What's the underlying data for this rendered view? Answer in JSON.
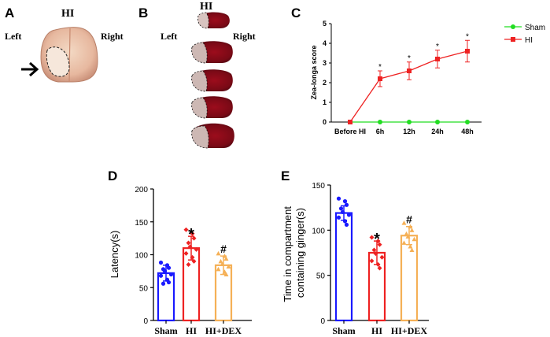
{
  "panels": {
    "a": {
      "label": "A",
      "title": "HI",
      "left_label": "Left",
      "right_label": "Right",
      "arrow_icon": "arrow-right-icon"
    },
    "b": {
      "label": "B",
      "title": "HI",
      "left_label": "Left",
      "right_label": "Right",
      "slice_count": 5
    },
    "c": {
      "label": "C"
    },
    "d": {
      "label": "D"
    },
    "e": {
      "label": "E"
    }
  },
  "colors": {
    "sham": "#1a1aff",
    "hi": "#ee2222",
    "hidex": "#f5b056",
    "line_sham": "#22dd22",
    "line_hi": "#ee2222"
  },
  "chart_data": [
    {
      "id": "C",
      "type": "line",
      "ylabel": "Zea-longa score",
      "categories": [
        "Before HI",
        "6h",
        "12h",
        "24h",
        "48h"
      ],
      "ylim": [
        0,
        5
      ],
      "yticks": [
        0,
        1,
        2,
        3,
        4,
        5
      ],
      "legend_position": "top-right",
      "series": [
        {
          "name": "Sham",
          "values": [
            0,
            0,
            0,
            0,
            0
          ],
          "errors": [
            0,
            0,
            0,
            0,
            0
          ],
          "annotations": [
            "",
            "",
            "",
            "",
            ""
          ]
        },
        {
          "name": "HI",
          "values": [
            0,
            2.2,
            2.6,
            3.2,
            3.6
          ],
          "errors": [
            0,
            0.4,
            0.45,
            0.45,
            0.55
          ],
          "annotations": [
            "",
            "*",
            "*",
            "*",
            "*"
          ]
        }
      ]
    },
    {
      "id": "D",
      "type": "bar",
      "ylabel": "Latency(s)",
      "categories": [
        "Sham",
        "HI",
        "HI+DEX"
      ],
      "ylim": [
        0,
        200
      ],
      "yticks": [
        0,
        50,
        100,
        150,
        200
      ],
      "values": [
        72,
        110,
        84
      ],
      "errors": [
        12,
        18,
        14
      ],
      "annotations": [
        "",
        "*",
        "#"
      ],
      "points": [
        [
          88,
          84,
          80,
          78,
          75,
          70,
          68,
          62,
          58,
          56
        ],
        [
          138,
          132,
          125,
          118,
          112,
          108,
          102,
          96,
          90,
          85
        ],
        [
          102,
          98,
          94,
          90,
          86,
          82,
          78,
          74,
          70
        ]
      ]
    },
    {
      "id": "E",
      "type": "bar",
      "ylabel": "Time in compartment containing ginger(s)",
      "categories": [
        "Sham",
        "HI",
        "HI+DEX"
      ],
      "ylim": [
        0,
        150
      ],
      "yticks": [
        0,
        50,
        100,
        150
      ],
      "values": [
        119,
        75,
        94
      ],
      "errors": [
        8,
        13,
        10
      ],
      "annotations": [
        "",
        "*",
        "#"
      ],
      "points": [
        [
          135,
          132,
          128,
          124,
          120,
          117,
          114,
          110,
          106
        ],
        [
          92,
          88,
          84,
          78,
          74,
          70,
          66,
          62,
          58
        ],
        [
          108,
          104,
          100,
          96,
          93,
          90,
          86,
          82,
          78
        ]
      ]
    }
  ]
}
